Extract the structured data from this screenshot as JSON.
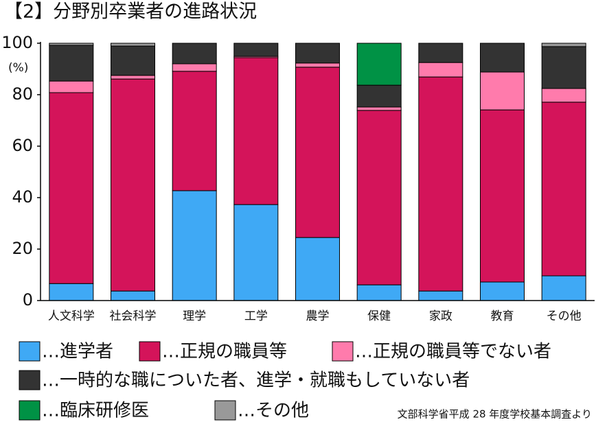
{
  "chart_data": {
    "type": "stacked_bar",
    "title": "【2】分野別卒業者の進路状況",
    "y_unit": "(%)",
    "source": "文部科学省平成 28 年度学校基本調査より",
    "categories": [
      "人文科学",
      "社会科学",
      "理学",
      "工学",
      "農学",
      "保健",
      "家政",
      "教育",
      "その他"
    ],
    "series": [
      {
        "name": "…進学者",
        "color": "#3fa9f5",
        "values": [
          6.6,
          3.7,
          42.7,
          37.3,
          24.5,
          6.1,
          3.7,
          7.2,
          9.6
        ]
      },
      {
        "name": "…正規の職員等",
        "color": "#d4145a",
        "values": [
          74.2,
          82.4,
          46.4,
          57.1,
          66.2,
          67.8,
          83.2,
          66.9,
          67.5
        ]
      },
      {
        "name": "…正規の職員等でない者",
        "color": "#ff7bac",
        "values": [
          4.5,
          1.4,
          2.9,
          0.5,
          1.6,
          1.3,
          5.6,
          14.7,
          5.3
        ]
      },
      {
        "name": "…一時的な職についた者、進学・就職もしていない者",
        "color": "#333333",
        "values": [
          13.9,
          11.4,
          8.0,
          5.1,
          7.7,
          8.5,
          7.5,
          11.2,
          16.3
        ]
      },
      {
        "name": "…臨床研修医",
        "color": "#009245",
        "values": [
          0,
          0,
          0,
          0,
          0,
          16.3,
          0,
          0,
          0
        ]
      },
      {
        "name": "…その他",
        "color": "#999999",
        "values": [
          0.8,
          1.1,
          0,
          0,
          0,
          0,
          0,
          0,
          1.3
        ]
      }
    ],
    "ylim": [
      0,
      100
    ],
    "yticks": [
      0,
      20,
      40,
      60,
      80,
      100
    ]
  }
}
